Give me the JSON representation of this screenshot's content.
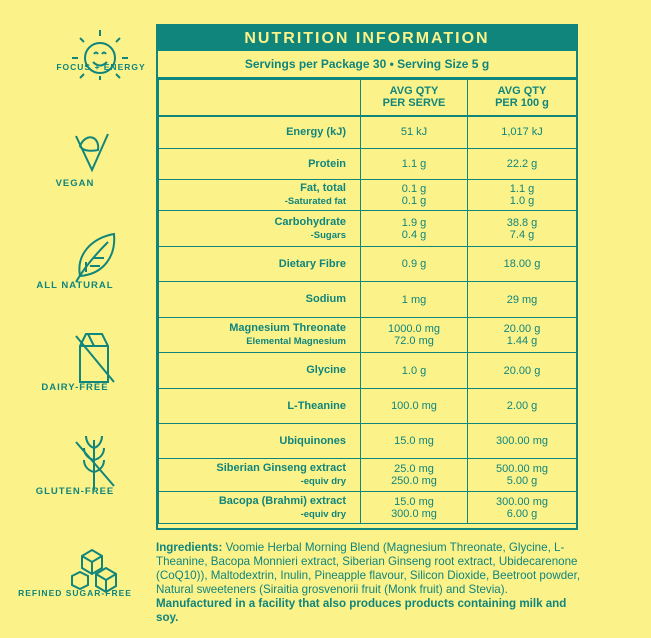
{
  "badges": [
    {
      "label": "FOCUS + ENERGY",
      "icon": "sun-icon"
    },
    {
      "label": "VEGAN",
      "icon": "vegan-v-leaf-icon"
    },
    {
      "label": "ALL NATURAL",
      "icon": "leaf-icon"
    },
    {
      "label": "DAIRY-FREE",
      "icon": "crossed-milk-carton-icon"
    },
    {
      "label": "GLUTEN-FREE",
      "icon": "crossed-wheat-icon"
    },
    {
      "label": "REFINED SUGAR-FREE",
      "icon": "sugar-cubes-icon"
    }
  ],
  "panel": {
    "title": "NUTRITION INFORMATION",
    "servings": "Servings per Package 30  •  Serving Size 5 g",
    "col_serve_1": "AVG QTY",
    "col_serve_2": "PER SERVE",
    "col_100_1": "AVG QTY",
    "col_100_2": "PER 100 g"
  },
  "rows": [
    {
      "name": "Energy (kJ)",
      "serve": "51 kJ",
      "per100": "1,017 kJ"
    },
    {
      "name": "Protein",
      "serve": "1.1 g",
      "per100": "22.2 g"
    },
    {
      "name": "Fat, total",
      "sub": "-Saturated fat",
      "serve": "0.1 g",
      "serve2": "0.1 g",
      "per100": "1.1 g",
      "per1002": "1.0 g"
    },
    {
      "name": "Carbohydrate",
      "sub": "-Sugars",
      "serve": "1.9 g",
      "serve2": "0.4 g",
      "per100": "38.8 g",
      "per1002": "7.4 g"
    },
    {
      "name": "Dietary Fibre",
      "serve": "0.9 g",
      "per100": "18.00 g"
    },
    {
      "name": "Sodium",
      "serve": "1 mg",
      "per100": "29 mg"
    },
    {
      "name": "Magnesium Threonate",
      "sub": "Elemental Magnesium",
      "serve": "1000.0 mg",
      "serve2": "72.0 mg",
      "per100": "20.00 g",
      "per1002": "1.44 g"
    },
    {
      "name": "Glycine",
      "serve": "1.0 g",
      "per100": "20.00 g"
    },
    {
      "name": "L-Theanine",
      "serve": "100.0 mg",
      "per100": "2.00 g"
    },
    {
      "name": "Ubiquinones",
      "serve": "15.0 mg",
      "per100": "300.00 mg"
    },
    {
      "name": "Siberian Ginseng extract",
      "sub": "-equiv dry",
      "serve": "25.0 mg",
      "serve2": "250.0 mg",
      "per100": "500.00 mg",
      "per1002": "5.00 g"
    },
    {
      "name": "Bacopa (Brahmi) extract",
      "sub": "-equiv dry",
      "serve": "15.0 mg",
      "serve2": "300.0 mg",
      "per100": "300.00 mg",
      "per1002": "6.00 g"
    }
  ],
  "ingredients": {
    "label": "Ingredients:",
    "text": " Voomie Herbal Morning Blend (Magnesium Threonate, Glycine, L-Theanine, Bacopa Monnieri extract, Siberian Ginseng root extract, Ubidecarenone (CoQ10)), Maltodextrin, Inulin, Pineapple flavour, Silicon Dioxide, Beetroot powder, Natural sweeteners (Siraitia grosvenorii fruit (Monk fruit) and Stevia). ",
    "note": "Manufactured in a facility that also produces products containing milk and soy."
  },
  "colors": {
    "background": "#fcf28a",
    "accent": "#0f857c"
  }
}
